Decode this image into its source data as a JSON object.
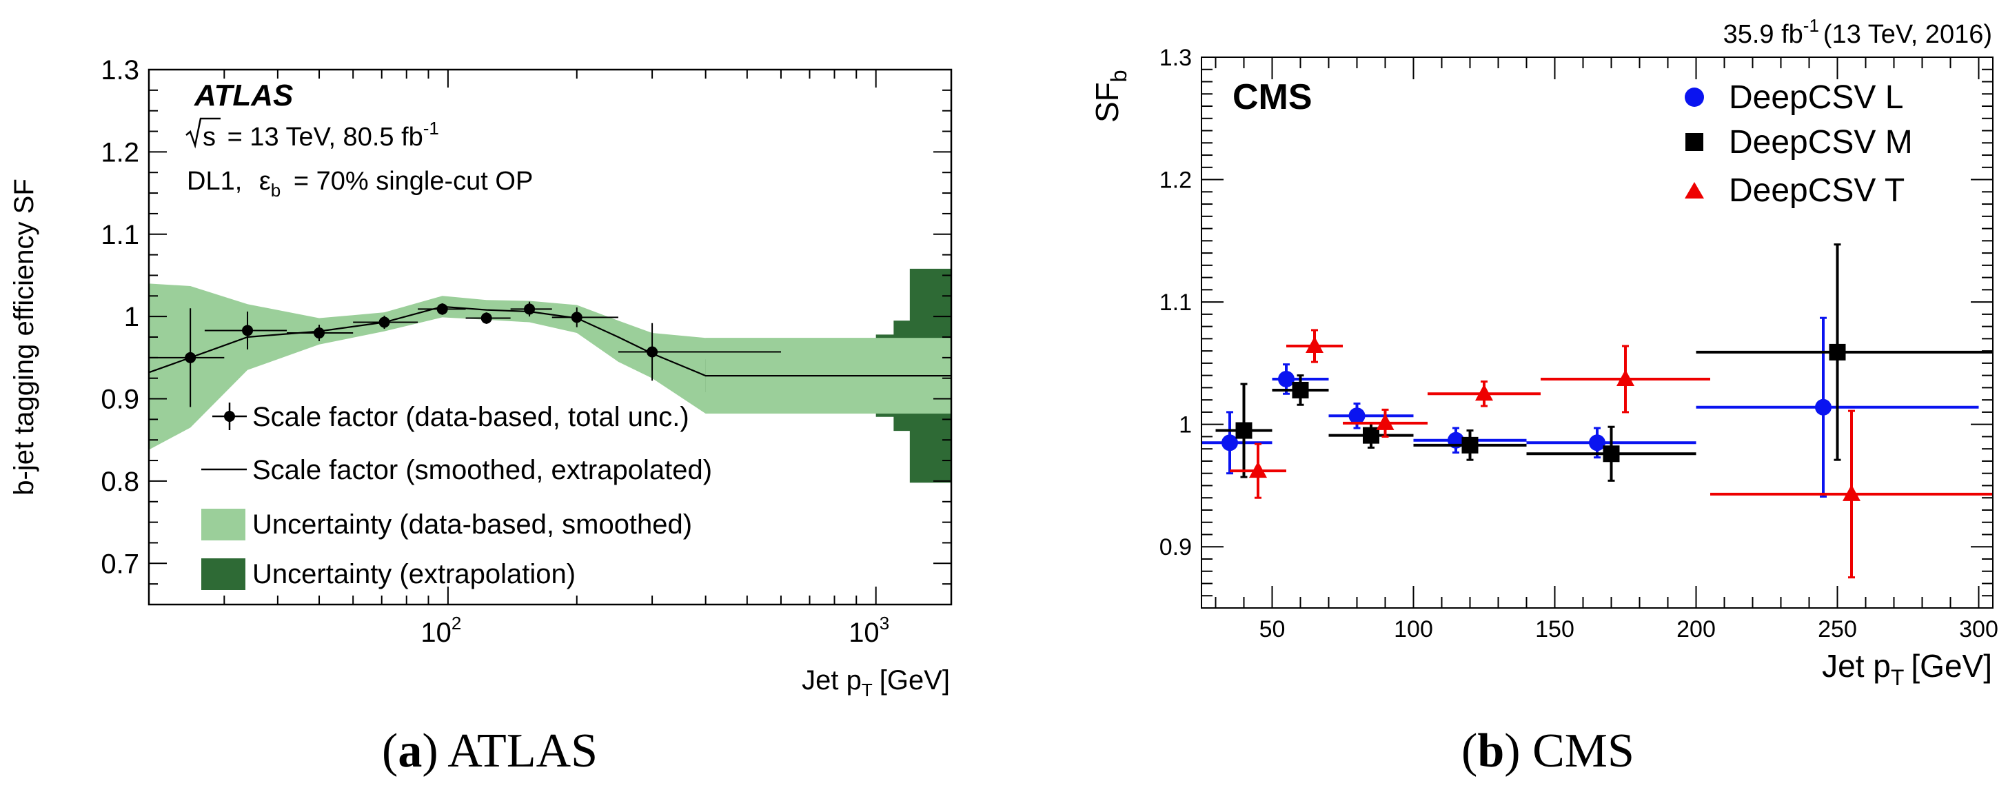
{
  "chart_data": [
    {
      "panel": "atlas",
      "type": "scatter",
      "xscale": "log",
      "xlim": [
        20,
        1500
      ],
      "ylim": [
        0.65,
        1.3
      ],
      "xlabel_main": "Jet p",
      "xlabel_sub": "T",
      "xlabel_unit": "[GeV]",
      "ylabel": "b-jet tagging efficiency SF",
      "yticks": [
        "0.7",
        "0.8",
        "0.9",
        "1",
        "1.1",
        "1.2",
        "1.3"
      ],
      "ytick_values": [
        0.7,
        0.8,
        0.9,
        1.0,
        1.1,
        1.2,
        1.3
      ],
      "xticks": [
        {
          "value": 100,
          "base": "10",
          "exp": "2"
        },
        {
          "value": 1000,
          "base": "10",
          "exp": "3"
        }
      ],
      "experiment_label": "ATLAS",
      "energy_text_pre": "s",
      "energy_text": "= 13 TeV, 80.5 fb",
      "energy_sup": "-1",
      "op_text_pre": "DL1,",
      "op_eps": "ε",
      "op_eps_sub": "b",
      "op_text": "= 70% single-cut OP",
      "legend": [
        {
          "label": "Scale factor (data-based, total unc.)",
          "style": "marker"
        },
        {
          "label": "Scale factor (smoothed, extrapolated)",
          "style": "line"
        },
        {
          "label": "Uncertainty (data-based, smoothed)",
          "style": "light-band"
        },
        {
          "label": "Uncertainty (extrapolation)",
          "style": "dark-band"
        }
      ],
      "points": [
        {
          "x": 25,
          "xlo": 20,
          "xhi": 30,
          "y": 0.95,
          "err": 0.06
        },
        {
          "x": 34,
          "xlo": 27,
          "xhi": 42,
          "y": 0.983,
          "err": 0.023
        },
        {
          "x": 50,
          "xlo": 42,
          "xhi": 60,
          "y": 0.98,
          "err": 0.01
        },
        {
          "x": 71,
          "xlo": 60,
          "xhi": 85,
          "y": 0.993,
          "err": 0.008
        },
        {
          "x": 97,
          "xlo": 85,
          "xhi": 110,
          "y": 1.009,
          "err": 0.007
        },
        {
          "x": 123,
          "xlo": 110,
          "xhi": 140,
          "y": 0.998,
          "err": 0.007
        },
        {
          "x": 155,
          "xlo": 140,
          "xhi": 175,
          "y": 1.009,
          "err": 0.009
        },
        {
          "x": 200,
          "xlo": 175,
          "xhi": 250,
          "y": 0.999,
          "err": 0.012
        },
        {
          "x": 300,
          "xlo": 250,
          "xhi": 600,
          "y": 0.957,
          "err": 0.035
        }
      ],
      "smoothed_curve": [
        [
          20,
          0.932
        ],
        [
          25,
          0.95
        ],
        [
          34,
          0.975
        ],
        [
          50,
          0.982
        ],
        [
          71,
          0.993
        ],
        [
          97,
          1.012
        ],
        [
          123,
          1.008
        ],
        [
          155,
          1.006
        ],
        [
          200,
          0.998
        ],
        [
          250,
          0.975
        ],
        [
          300,
          0.955
        ],
        [
          400,
          0.928
        ],
        [
          1500,
          0.928
        ]
      ],
      "light_band_upper": [
        [
          20,
          1.04
        ],
        [
          25,
          1.037
        ],
        [
          34,
          1.015
        ],
        [
          50,
          0.998
        ],
        [
          71,
          1.005
        ],
        [
          97,
          1.025
        ],
        [
          123,
          1.02
        ],
        [
          155,
          1.019
        ],
        [
          200,
          1.014
        ],
        [
          250,
          0.995
        ],
        [
          300,
          0.98
        ],
        [
          400,
          0.974
        ],
        [
          1500,
          0.974
        ]
      ],
      "light_band_lower": [
        [
          20,
          0.838
        ],
        [
          25,
          0.865
        ],
        [
          34,
          0.935
        ],
        [
          50,
          0.966
        ],
        [
          71,
          0.982
        ],
        [
          97,
          0.999
        ],
        [
          123,
          0.996
        ],
        [
          155,
          0.993
        ],
        [
          200,
          0.98
        ],
        [
          250,
          0.945
        ],
        [
          300,
          0.925
        ],
        [
          400,
          0.882
        ],
        [
          1500,
          0.882
        ]
      ],
      "dark_band_edges": [
        400,
        600,
        800,
        1000,
        1100,
        1200,
        1500
      ],
      "dark_band_half_widths": [
        0.02,
        0.026,
        0.032,
        0.05,
        0.067,
        0.13
      ],
      "colors": {
        "light": "#9bcf9a",
        "dark": "#2e6a35"
      }
    },
    {
      "panel": "cms",
      "type": "scatter",
      "xscale": "linear",
      "xlim": [
        25,
        305
      ],
      "ylim": [
        0.85,
        1.3
      ],
      "xlabel_main": "Jet p",
      "xlabel_sub": "T",
      "xlabel_unit": "[GeV]",
      "ylabel_main": "SF",
      "ylabel_sub": "b",
      "yticks": [
        "0.9",
        "1",
        "1.1",
        "1.2",
        "1.3"
      ],
      "ytick_values": [
        0.9,
        1.0,
        1.1,
        1.2,
        1.3
      ],
      "xticks": [
        "50",
        "100",
        "150",
        "200",
        "250",
        "300"
      ],
      "xtick_values": [
        50,
        100,
        150,
        200,
        250,
        300
      ],
      "experiment_label": "CMS",
      "lumi_pre": "35.9 fb",
      "lumi_sup": "-1",
      "lumi_post": "(13 TeV, 2016)",
      "series": [
        {
          "name": "DeepCSV L",
          "color": "#0a14f0",
          "marker": "circle",
          "points": [
            {
              "x": 35,
              "xlo": 20,
              "xhi": 50,
              "y": 0.985,
              "err": 0.025
            },
            {
              "x": 55,
              "xlo": 50,
              "xhi": 70,
              "y": 1.037,
              "err": 0.012
            },
            {
              "x": 80,
              "xlo": 70,
              "xhi": 100,
              "y": 1.007,
              "err": 0.01
            },
            {
              "x": 115,
              "xlo": 100,
              "xhi": 140,
              "y": 0.987,
              "err": 0.01
            },
            {
              "x": 165,
              "xlo": 140,
              "xhi": 200,
              "y": 0.985,
              "err": 0.012
            },
            {
              "x": 245,
              "xlo": 200,
              "xhi": 300,
              "y": 1.014,
              "err": 0.073
            }
          ]
        },
        {
          "name": "DeepCSV M",
          "color": "#000000",
          "marker": "square",
          "points": [
            {
              "x": 40,
              "xlo": 30,
              "xhi": 50,
              "y": 0.995,
              "err": 0.038
            },
            {
              "x": 60,
              "xlo": 50,
              "xhi": 70,
              "y": 1.028,
              "err": 0.012
            },
            {
              "x": 85,
              "xlo": 70,
              "xhi": 100,
              "y": 0.991,
              "err": 0.01
            },
            {
              "x": 120,
              "xlo": 100,
              "xhi": 140,
              "y": 0.983,
              "err": 0.012
            },
            {
              "x": 170,
              "xlo": 140,
              "xhi": 200,
              "y": 0.976,
              "err": 0.022
            },
            {
              "x": 250,
              "xlo": 200,
              "xhi": 305,
              "y": 1.059,
              "err": 0.088
            }
          ]
        },
        {
          "name": "DeepCSV T",
          "color": "#ee0000",
          "marker": "triangle",
          "points": [
            {
              "x": 45,
              "xlo": 35,
              "xhi": 55,
              "y": 0.962,
              "err": 0.022
            },
            {
              "x": 65,
              "xlo": 55,
              "xhi": 75,
              "y": 1.064,
              "err": 0.013
            },
            {
              "x": 90,
              "xlo": 75,
              "xhi": 105,
              "y": 1.001,
              "err": 0.011
            },
            {
              "x": 125,
              "xlo": 105,
              "xhi": 145,
              "y": 1.025,
              "err": 0.01
            },
            {
              "x": 175,
              "xlo": 145,
              "xhi": 205,
              "y": 1.037,
              "err": 0.027
            },
            {
              "x": 255,
              "xlo": 205,
              "xhi": 305,
              "y": 0.943,
              "err": 0.068
            }
          ]
        }
      ]
    }
  ],
  "captions": [
    {
      "letter": "a",
      "text": "ATLAS"
    },
    {
      "letter": "b",
      "text": "CMS"
    }
  ]
}
